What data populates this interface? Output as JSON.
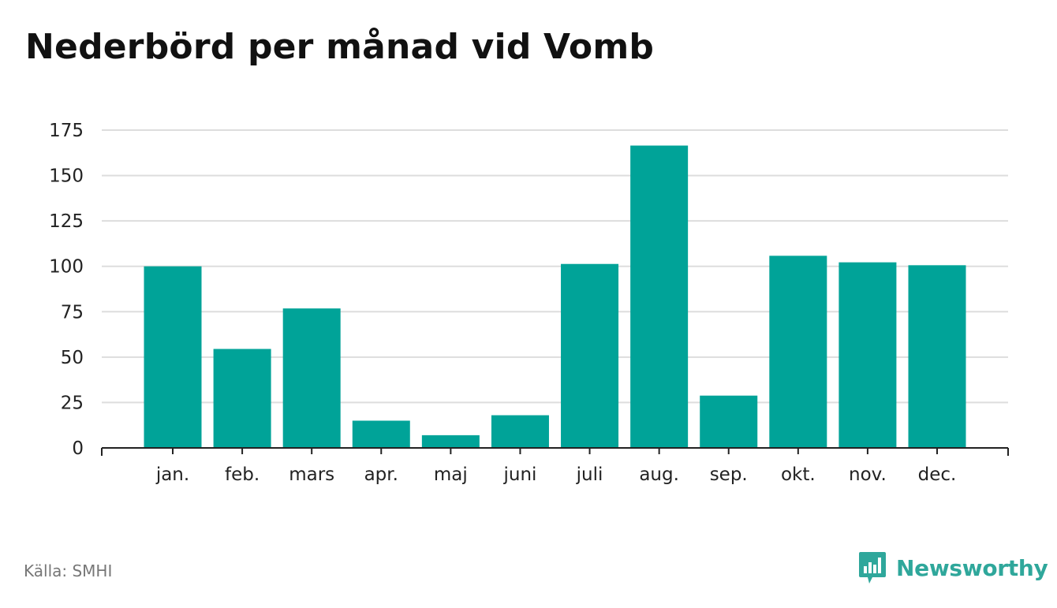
{
  "title": "Nederbörd per månad vid Vomb",
  "source": "Källa: SMHI",
  "brand": {
    "name": "Newsworthy",
    "icon": "newsworthy-logo-icon",
    "color": "#2fa79b"
  },
  "colors": {
    "bar": "#00a398",
    "grid": "#dddddd",
    "axis": "#222222",
    "text": "#222222"
  },
  "chart_data": {
    "type": "bar",
    "title": "Nederbörd per månad vid Vomb",
    "xlabel": "",
    "ylabel": "",
    "categories": [
      "jan.",
      "feb.",
      "mars",
      "apr.",
      "maj",
      "juni",
      "juli",
      "aug.",
      "sep.",
      "okt.",
      "nov.",
      "dec."
    ],
    "values": [
      100,
      54.5,
      76.8,
      15,
      7,
      18,
      101.3,
      166.5,
      28.8,
      105.8,
      102.2,
      100.6
    ],
    "ylim": [
      0,
      175
    ],
    "yticks": [
      0,
      25,
      50,
      75,
      100,
      125,
      150,
      175
    ],
    "grid": true,
    "legend": "none"
  }
}
